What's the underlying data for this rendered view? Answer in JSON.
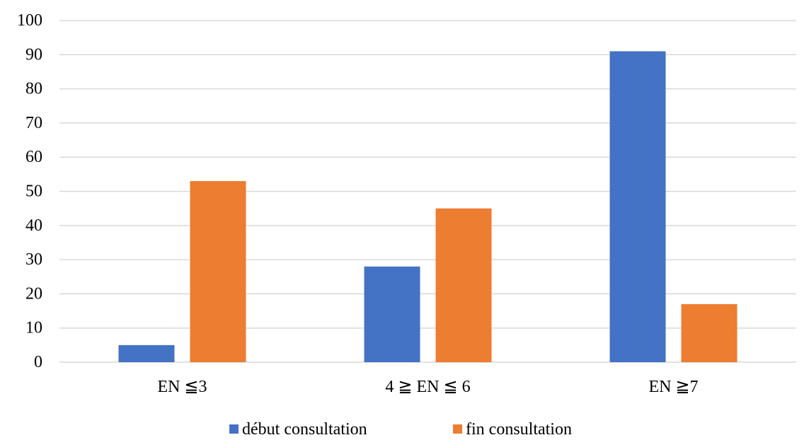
{
  "colors": {
    "series_1": "#4472C4",
    "series_2": "#ED7D31",
    "gridline": "#D9D9D9",
    "background": "#FFFFFF"
  },
  "chart_data": {
    "type": "bar",
    "title": "",
    "xlabel": "",
    "ylabel": "",
    "categories": [
      "EN ≦3",
      "4 ≧ EN ≦ 6",
      "EN ≧7"
    ],
    "series": [
      {
        "name": "début consultation",
        "values": [
          5,
          28,
          91
        ],
        "color": "#4472C4"
      },
      {
        "name": "fin consultation",
        "values": [
          53,
          45,
          17
        ],
        "color": "#ED7D31"
      }
    ],
    "ylim": [
      0,
      100
    ],
    "yticks": [
      0,
      10,
      20,
      30,
      40,
      50,
      60,
      70,
      80,
      90,
      100
    ],
    "grid": true,
    "legend_position": "bottom"
  }
}
